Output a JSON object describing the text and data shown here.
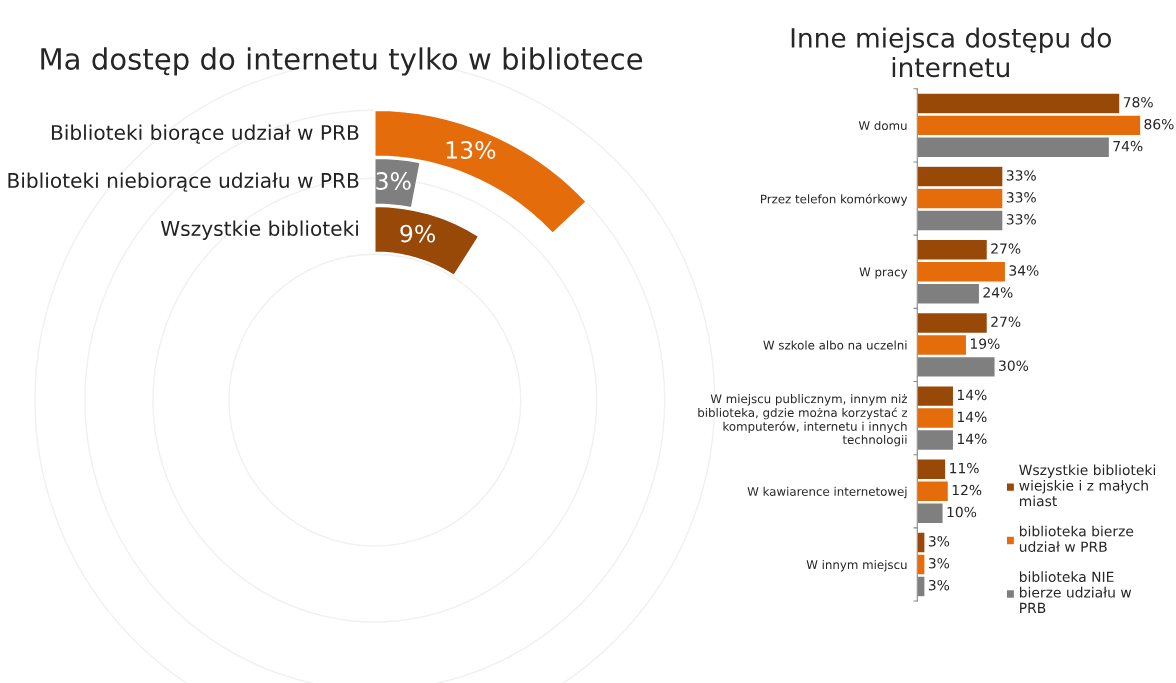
{
  "chart_data": [
    {
      "type": "other",
      "title": "Ma dostęp do internetu tylko w bibliotece",
      "categories": [
        "Biblioteki biorące udział w PRB",
        "Biblioteki niebiorące udziału w PRB",
        "Wszystkie biblioteki"
      ],
      "values": [
        13,
        3,
        9
      ],
      "value_labels": [
        "13%",
        "3%",
        "9%"
      ],
      "colors": [
        "#e46c0a",
        "#7f7f7f",
        "#984807"
      ]
    },
    {
      "type": "bar",
      "orientation": "horizontal",
      "title": "Inne miejsca dostępu do internetu",
      "categories": [
        "W domu",
        "Przez telefon komórkowy",
        "W pracy",
        "W szkole albo na uczelni",
        "W miejscu publicznym, innym niż\nbiblioteka, gdzie można korzystać z\nkomputerów, internetu i innych\ntechnologii",
        "W kawiarence internetowej",
        "W innym miejscu"
      ],
      "series": [
        {
          "name": "Wszystkie biblioteki\nwiejskie i z małych\nmiast",
          "color": "#984807",
          "values": [
            78,
            33,
            27,
            27,
            14,
            11,
            3
          ],
          "value_labels": [
            "78%",
            "33%",
            "27%",
            "27%",
            "14%",
            "11%",
            "3%"
          ]
        },
        {
          "name": "biblioteka bierze\nudział w PRB",
          "color": "#e46c0a",
          "values": [
            86,
            33,
            34,
            19,
            14,
            12,
            3
          ],
          "value_labels": [
            "86%",
            "33%",
            "34%",
            "19%",
            "14%",
            "12%",
            "3%"
          ]
        },
        {
          "name": "biblioteka NIE\nbierze udziału w\nPRB",
          "color": "#7f7f7f",
          "values": [
            74,
            33,
            24,
            30,
            14,
            10,
            3
          ],
          "value_labels": [
            "74%",
            "33%",
            "24%",
            "30%",
            "14%",
            "10%",
            "3%"
          ]
        }
      ],
      "legend": "bottom right",
      "tick_labels": "y"
    }
  ]
}
